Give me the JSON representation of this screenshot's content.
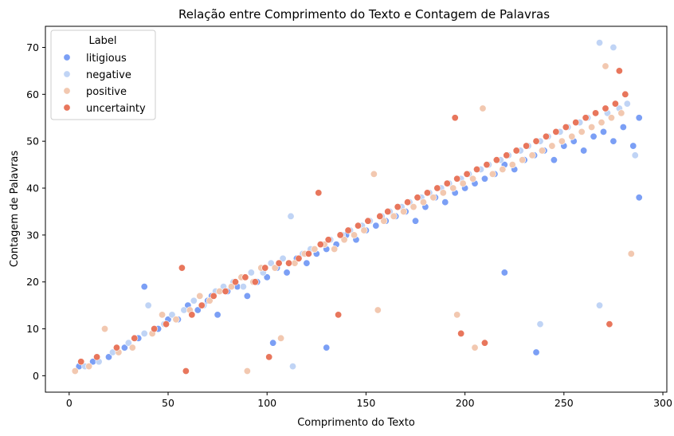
{
  "chart_data": {
    "type": "scatter",
    "title": "Relação entre Comprimento do Texto e Contagem de Palavras",
    "xlabel": "Comprimento do Texto",
    "ylabel": "Contagem de Palavras",
    "xlim": [
      -12,
      302
    ],
    "ylim": [
      -3.5,
      74.5
    ],
    "xticks": [
      0,
      50,
      100,
      150,
      200,
      250,
      300
    ],
    "yticks": [
      0,
      10,
      20,
      30,
      40,
      50,
      60,
      70
    ],
    "grid": false,
    "legend": {
      "title": "Label",
      "placement": "top-left",
      "entries": [
        "litigious",
        "negative",
        "positive",
        "uncertainty"
      ]
    },
    "colors": {
      "litigious": "#7b9ff5",
      "negative": "#c0d4f5",
      "positive": "#f2c8b0",
      "uncertainty": "#e8765c"
    },
    "series": [
      {
        "name": "litigious",
        "color": "#7b9ff5",
        "points": [
          [
            5,
            2
          ],
          [
            12,
            3
          ],
          [
            20,
            4
          ],
          [
            28,
            6
          ],
          [
            35,
            8
          ],
          [
            38,
            19
          ],
          [
            45,
            10
          ],
          [
            50,
            12
          ],
          [
            55,
            12
          ],
          [
            60,
            15
          ],
          [
            65,
            14
          ],
          [
            70,
            16
          ],
          [
            72,
            17
          ],
          [
            75,
            13
          ],
          [
            80,
            18
          ],
          [
            85,
            19
          ],
          [
            90,
            17
          ],
          [
            95,
            20
          ],
          [
            100,
            21
          ],
          [
            103,
            7
          ],
          [
            105,
            23
          ],
          [
            110,
            22
          ],
          [
            115,
            25
          ],
          [
            120,
            24
          ],
          [
            125,
            26
          ],
          [
            130,
            6
          ],
          [
            130,
            27
          ],
          [
            135,
            28
          ],
          [
            140,
            30
          ],
          [
            145,
            29
          ],
          [
            150,
            31
          ],
          [
            155,
            32
          ],
          [
            160,
            33
          ],
          [
            165,
            34
          ],
          [
            170,
            35
          ],
          [
            175,
            33
          ],
          [
            180,
            36
          ],
          [
            185,
            38
          ],
          [
            190,
            37
          ],
          [
            195,
            39
          ],
          [
            200,
            40
          ],
          [
            205,
            41
          ],
          [
            210,
            42
          ],
          [
            215,
            43
          ],
          [
            220,
            22
          ],
          [
            220,
            45
          ],
          [
            225,
            44
          ],
          [
            230,
            46
          ],
          [
            235,
            47
          ],
          [
            236,
            5
          ],
          [
            240,
            48
          ],
          [
            245,
            46
          ],
          [
            250,
            49
          ],
          [
            255,
            50
          ],
          [
            260,
            48
          ],
          [
            265,
            51
          ],
          [
            270,
            52
          ],
          [
            275,
            50
          ],
          [
            280,
            53
          ],
          [
            285,
            49
          ],
          [
            288,
            38
          ],
          [
            288,
            55
          ]
        ]
      },
      {
        "name": "negative",
        "color": "#c0d4f5",
        "points": [
          [
            8,
            2
          ],
          [
            15,
            3
          ],
          [
            22,
            5
          ],
          [
            30,
            7
          ],
          [
            38,
            9
          ],
          [
            40,
            15
          ],
          [
            48,
            11
          ],
          [
            52,
            13
          ],
          [
            58,
            14
          ],
          [
            63,
            16
          ],
          [
            68,
            15
          ],
          [
            74,
            18
          ],
          [
            78,
            19
          ],
          [
            83,
            20
          ],
          [
            88,
            19
          ],
          [
            92,
            22
          ],
          [
            98,
            22
          ],
          [
            102,
            24
          ],
          [
            108,
            25
          ],
          [
            112,
            34
          ],
          [
            113,
            2
          ],
          [
            118,
            26
          ],
          [
            122,
            27
          ],
          [
            128,
            28
          ],
          [
            132,
            29
          ],
          [
            138,
            30
          ],
          [
            142,
            31
          ],
          [
            148,
            32
          ],
          [
            152,
            33
          ],
          [
            158,
            34
          ],
          [
            162,
            35
          ],
          [
            168,
            36
          ],
          [
            172,
            37
          ],
          [
            178,
            38
          ],
          [
            182,
            39
          ],
          [
            188,
            40
          ],
          [
            192,
            41
          ],
          [
            198,
            42
          ],
          [
            202,
            43
          ],
          [
            208,
            44
          ],
          [
            212,
            45
          ],
          [
            218,
            46
          ],
          [
            222,
            47
          ],
          [
            228,
            48
          ],
          [
            232,
            49
          ],
          [
            238,
            11
          ],
          [
            238,
            50
          ],
          [
            242,
            51
          ],
          [
            248,
            52
          ],
          [
            252,
            53
          ],
          [
            258,
            54
          ],
          [
            262,
            55
          ],
          [
            268,
            15
          ],
          [
            268,
            71
          ],
          [
            272,
            56
          ],
          [
            275,
            70
          ],
          [
            278,
            57
          ],
          [
            282,
            58
          ],
          [
            286,
            47
          ]
        ]
      },
      {
        "name": "positive",
        "color": "#f2c8b0",
        "points": [
          [
            3,
            1
          ],
          [
            10,
            2
          ],
          [
            18,
            10
          ],
          [
            25,
            5
          ],
          [
            32,
            6
          ],
          [
            42,
            9
          ],
          [
            47,
            13
          ],
          [
            54,
            12
          ],
          [
            61,
            14
          ],
          [
            66,
            17
          ],
          [
            71,
            16
          ],
          [
            76,
            18
          ],
          [
            82,
            19
          ],
          [
            87,
            21
          ],
          [
            90,
            1
          ],
          [
            93,
            20
          ],
          [
            97,
            23
          ],
          [
            104,
            23
          ],
          [
            107,
            8
          ],
          [
            114,
            24
          ],
          [
            119,
            26
          ],
          [
            124,
            27
          ],
          [
            129,
            28
          ],
          [
            134,
            27
          ],
          [
            139,
            29
          ],
          [
            144,
            30
          ],
          [
            149,
            31
          ],
          [
            154,
            43
          ],
          [
            156,
            14
          ],
          [
            159,
            33
          ],
          [
            164,
            34
          ],
          [
            169,
            35
          ],
          [
            174,
            36
          ],
          [
            179,
            37
          ],
          [
            184,
            38
          ],
          [
            189,
            39
          ],
          [
            194,
            40
          ],
          [
            196,
            13
          ],
          [
            199,
            41
          ],
          [
            204,
            42
          ],
          [
            205,
            6
          ],
          [
            209,
            57
          ],
          [
            214,
            43
          ],
          [
            219,
            44
          ],
          [
            224,
            45
          ],
          [
            229,
            46
          ],
          [
            234,
            47
          ],
          [
            239,
            48
          ],
          [
            244,
            49
          ],
          [
            249,
            50
          ],
          [
            254,
            51
          ],
          [
            259,
            52
          ],
          [
            264,
            53
          ],
          [
            269,
            54
          ],
          [
            271,
            66
          ],
          [
            274,
            55
          ],
          [
            279,
            56
          ],
          [
            284,
            26
          ]
        ]
      },
      {
        "name": "uncertainty",
        "color": "#e8765c",
        "points": [
          [
            6,
            3
          ],
          [
            14,
            4
          ],
          [
            24,
            6
          ],
          [
            33,
            8
          ],
          [
            43,
            10
          ],
          [
            49,
            11
          ],
          [
            57,
            23
          ],
          [
            59,
            1
          ],
          [
            62,
            13
          ],
          [
            67,
            15
          ],
          [
            73,
            17
          ],
          [
            79,
            18
          ],
          [
            84,
            20
          ],
          [
            89,
            21
          ],
          [
            94,
            20
          ],
          [
            99,
            23
          ],
          [
            101,
            4
          ],
          [
            106,
            24
          ],
          [
            111,
            24
          ],
          [
            116,
            25
          ],
          [
            121,
            26
          ],
          [
            126,
            39
          ],
          [
            127,
            28
          ],
          [
            131,
            29
          ],
          [
            136,
            13
          ],
          [
            137,
            30
          ],
          [
            141,
            31
          ],
          [
            146,
            32
          ],
          [
            151,
            33
          ],
          [
            157,
            34
          ],
          [
            161,
            35
          ],
          [
            166,
            36
          ],
          [
            171,
            37
          ],
          [
            176,
            38
          ],
          [
            181,
            39
          ],
          [
            186,
            40
          ],
          [
            191,
            41
          ],
          [
            195,
            55
          ],
          [
            196,
            42
          ],
          [
            198,
            9
          ],
          [
            201,
            43
          ],
          [
            206,
            44
          ],
          [
            210,
            7
          ],
          [
            211,
            45
          ],
          [
            216,
            46
          ],
          [
            221,
            47
          ],
          [
            226,
            48
          ],
          [
            231,
            49
          ],
          [
            236,
            50
          ],
          [
            241,
            51
          ],
          [
            246,
            52
          ],
          [
            251,
            53
          ],
          [
            256,
            54
          ],
          [
            261,
            55
          ],
          [
            266,
            56
          ],
          [
            271,
            57
          ],
          [
            273,
            11
          ],
          [
            276,
            58
          ],
          [
            278,
            65
          ],
          [
            281,
            60
          ]
        ]
      }
    ]
  }
}
